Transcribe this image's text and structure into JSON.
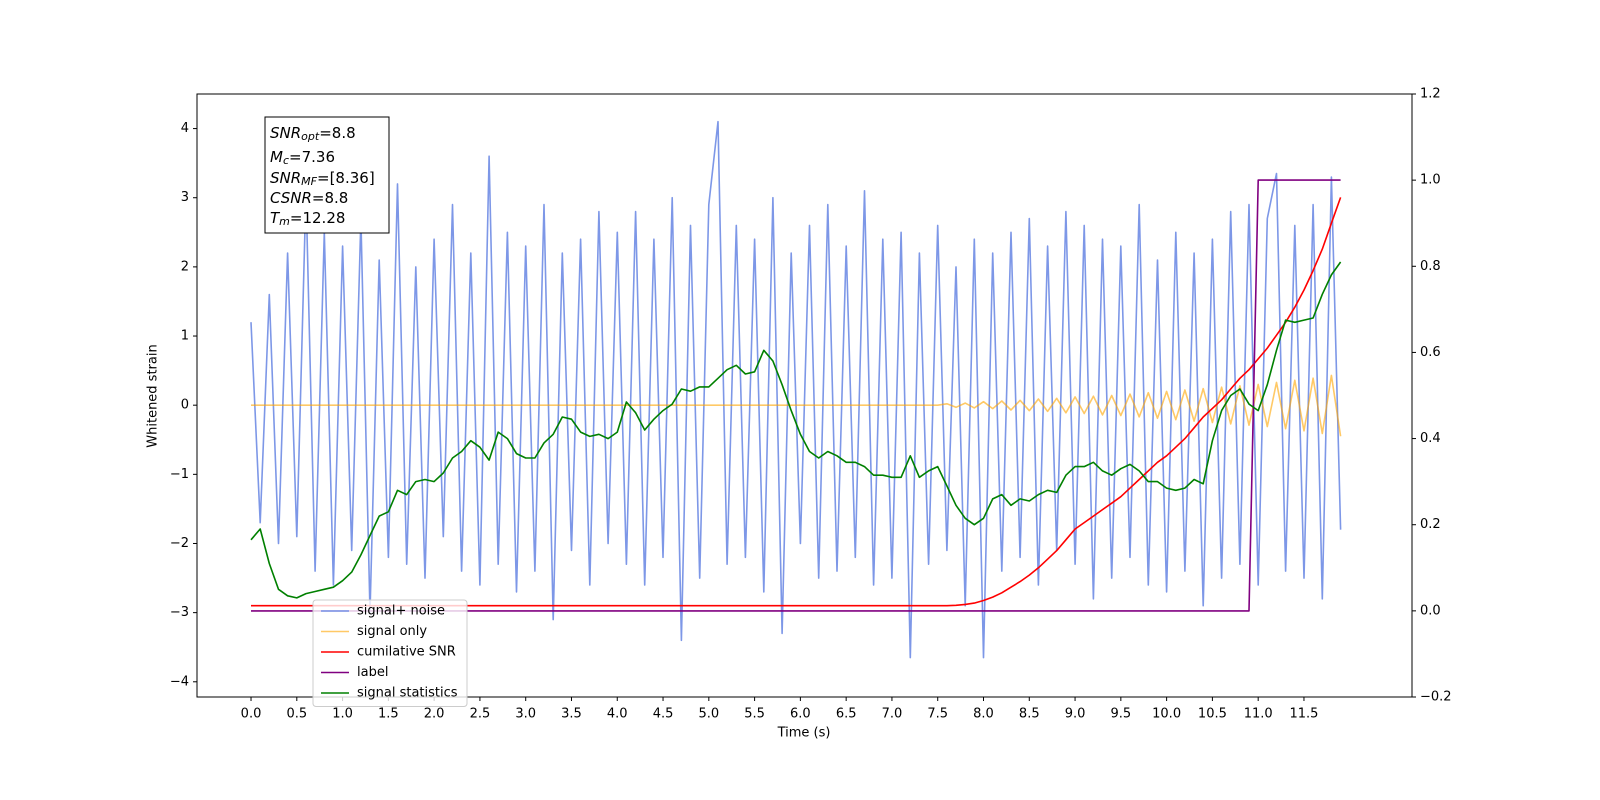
{
  "chart_data": {
    "type": "line",
    "xlabel": "Time (s)",
    "ylabel": "Whitened strain",
    "xlim": [
      -0.59,
      12.68
    ],
    "ylim": [
      -4.22,
      4.5
    ],
    "y2lim": [
      -0.2,
      1.2
    ],
    "xticks": [
      {
        "value": 0,
        "label": "0.0"
      },
      0.5,
      {
        "value": 1,
        "label": "1.0"
      },
      1.5,
      {
        "value": 2,
        "label": "2.0"
      },
      2.5,
      {
        "value": 3,
        "label": "3.0"
      },
      3.5,
      {
        "value": 4,
        "label": "4.0"
      },
      4.5,
      {
        "value": 5,
        "label": "5.0"
      },
      5.5,
      {
        "value": 6,
        "label": "6.0"
      },
      6.5,
      {
        "value": 7,
        "label": "7.0"
      },
      7.5,
      {
        "value": 8,
        "label": "8.0"
      },
      8.5,
      {
        "value": 9,
        "label": "9.0"
      },
      9.5,
      {
        "value": 10,
        "label": "10.0"
      },
      10.5,
      {
        "value": 11,
        "label": "11.0"
      },
      11.5
    ],
    "yticks": [
      {
        "value": -4,
        "label": "−4"
      },
      {
        "value": -3,
        "label": "−3"
      },
      {
        "value": -2,
        "label": "−2"
      },
      {
        "value": -1,
        "label": "−1"
      },
      0,
      1,
      2,
      3,
      4
    ],
    "y2ticks": [
      {
        "value": -0.2,
        "label": "−0.2"
      },
      {
        "value": 0,
        "label": "0.0"
      },
      0.2,
      0.4,
      0.6,
      0.8,
      {
        "value": 1,
        "label": "1.0"
      },
      1.2
    ],
    "legend": "lower left",
    "annotations": [
      {
        "base": "SNR",
        "sub": "opt",
        "text": "=8.8"
      },
      {
        "base": "M",
        "sub": "c",
        "text": "=7.36"
      },
      {
        "base": "SNR",
        "sub": "MF",
        "text": "=[8.36]"
      },
      {
        "base": "CSNR",
        "text": "=8.8"
      },
      {
        "base": "T",
        "sub": "m",
        "text": "=12.28"
      }
    ],
    "x": [
      0,
      0.1,
      0.2,
      0.3,
      0.4,
      0.5,
      0.6,
      0.7,
      0.8,
      0.9,
      1,
      1.1,
      1.2,
      1.3,
      1.4,
      1.5,
      1.6,
      1.7,
      1.8,
      1.9,
      2,
      2.1,
      2.2,
      2.3,
      2.4,
      2.5,
      2.6,
      2.7,
      2.8,
      2.9,
      3,
      3.1,
      3.2,
      3.3,
      3.4,
      3.5,
      3.6,
      3.7,
      3.8,
      3.9,
      4,
      4.1,
      4.2,
      4.3,
      4.4,
      4.5,
      4.6,
      4.7,
      4.8,
      4.9,
      5,
      5.1,
      5.2,
      5.3,
      5.4,
      5.5,
      5.6,
      5.7,
      5.8,
      5.9,
      6,
      6.1,
      6.2,
      6.3,
      6.4,
      6.5,
      6.6,
      6.7,
      6.8,
      6.9,
      7,
      7.1,
      7.2,
      7.3,
      7.4,
      7.5,
      7.6,
      7.7,
      7.8,
      7.9,
      8,
      8.1,
      8.2,
      8.3,
      8.4,
      8.5,
      8.6,
      8.7,
      8.8,
      8.9,
      9,
      9.1,
      9.2,
      9.3,
      9.4,
      9.5,
      9.6,
      9.7,
      9.8,
      9.9,
      10,
      10.1,
      10.2,
      10.3,
      10.4,
      10.5,
      10.6,
      10.7,
      10.8,
      10.9,
      11,
      11.1,
      11.2,
      11.3,
      11.4,
      11.5,
      11.6,
      11.7,
      11.8,
      11.9
    ],
    "series": [
      {
        "name": "signal+ noise",
        "color": "#7691e6",
        "values": [
          1.2,
          -1.7,
          1.6,
          -2.0,
          2.2,
          -1.9,
          3.1,
          -2.4,
          2.5,
          -2.6,
          2.3,
          -2.1,
          2.7,
          -3.0,
          2.1,
          -2.2,
          3.2,
          -2.3,
          2.0,
          -2.5,
          2.4,
          -1.9,
          2.9,
          -2.4,
          2.2,
          -2.6,
          3.6,
          -2.3,
          2.5,
          -2.7,
          2.3,
          -2.4,
          2.9,
          -3.1,
          2.2,
          -2.1,
          2.4,
          -2.6,
          2.8,
          -2.0,
          2.5,
          -2.3,
          2.8,
          -2.6,
          2.4,
          -2.2,
          3.0,
          -3.4,
          2.6,
          -2.5,
          2.9,
          4.1,
          -2.3,
          2.6,
          -2.2,
          2.4,
          -2.7,
          3.0,
          -3.3,
          2.2,
          -2.0,
          2.6,
          -2.5,
          2.9,
          -2.4,
          2.3,
          -2.2,
          3.1,
          -2.6,
          2.4,
          -2.5,
          2.5,
          -3.65,
          2.2,
          -2.3,
          2.6,
          -2.1,
          2.0,
          -2.9,
          2.4,
          -3.65,
          2.2,
          -2.4,
          2.5,
          -2.2,
          2.7,
          -2.6,
          2.3,
          -2.1,
          2.8,
          -2.3,
          2.6,
          -2.8,
          2.4,
          -2.5,
          2.3,
          -2.2,
          2.9,
          -2.6,
          2.1,
          -2.7,
          2.5,
          -2.4,
          2.2,
          -2.9,
          2.4,
          -2.5,
          2.8,
          -2.3,
          2.9,
          -2.6,
          2.7,
          3.35,
          -2.4,
          2.6,
          -2.5,
          2.9,
          -2.8,
          3.3,
          -1.8
        ]
      },
      {
        "name": "signal only",
        "color": "#ffa500",
        "values": [
          0,
          0,
          0,
          0,
          0,
          0,
          0,
          0,
          0,
          0,
          0,
          0,
          0,
          0,
          0,
          0,
          0,
          0,
          0,
          0,
          0,
          0,
          0,
          0,
          0,
          0,
          0,
          0,
          0,
          0,
          0,
          0,
          0,
          0,
          0,
          0,
          0,
          0,
          0,
          0,
          0,
          0,
          0,
          0,
          0,
          0,
          0,
          0,
          0,
          0,
          0,
          0,
          0,
          0,
          0,
          0,
          0,
          0,
          0,
          0,
          0,
          0,
          0,
          0,
          0,
          0,
          0,
          0,
          0,
          0,
          0,
          0,
          0,
          0,
          0,
          0,
          0.02,
          -0.03,
          0.03,
          -0.04,
          0.05,
          -0.05,
          0.06,
          -0.07,
          0.07,
          -0.08,
          0.09,
          -0.09,
          0.1,
          -0.11,
          0.12,
          -0.12,
          0.13,
          -0.14,
          0.14,
          -0.15,
          0.16,
          -0.17,
          0.18,
          -0.19,
          0.2,
          -0.21,
          0.22,
          -0.23,
          0.24,
          -0.25,
          0.26,
          -0.27,
          0.28,
          -0.29,
          0.3,
          -0.31,
          0.33,
          -0.34,
          0.36,
          -0.37,
          0.39,
          -0.41,
          0.43,
          -0.45
        ]
      },
      {
        "name": "cumilative SNR",
        "color": "red",
        "axis": "y2",
        "values": [
          0.012,
          0.012,
          0.012,
          0.012,
          0.012,
          0.012,
          0.012,
          0.012,
          0.012,
          0.012,
          0.012,
          0.012,
          0.012,
          0.012,
          0.012,
          0.012,
          0.012,
          0.012,
          0.012,
          0.012,
          0.012,
          0.012,
          0.012,
          0.012,
          0.012,
          0.012,
          0.012,
          0.012,
          0.012,
          0.012,
          0.012,
          0.012,
          0.012,
          0.012,
          0.012,
          0.012,
          0.012,
          0.012,
          0.012,
          0.012,
          0.012,
          0.012,
          0.012,
          0.012,
          0.012,
          0.012,
          0.012,
          0.012,
          0.012,
          0.012,
          0.012,
          0.012,
          0.012,
          0.012,
          0.012,
          0.012,
          0.012,
          0.012,
          0.012,
          0.012,
          0.012,
          0.012,
          0.012,
          0.012,
          0.012,
          0.012,
          0.012,
          0.012,
          0.012,
          0.012,
          0.012,
          0.012,
          0.012,
          0.012,
          0.012,
          0.012,
          0.012,
          0.013,
          0.015,
          0.018,
          0.024,
          0.032,
          0.042,
          0.055,
          0.068,
          0.083,
          0.1,
          0.12,
          0.14,
          0.165,
          0.19,
          0.205,
          0.22,
          0.235,
          0.25,
          0.265,
          0.285,
          0.305,
          0.325,
          0.345,
          0.36,
          0.38,
          0.4,
          0.425,
          0.45,
          0.47,
          0.49,
          0.515,
          0.54,
          0.56,
          0.585,
          0.61,
          0.64,
          0.67,
          0.705,
          0.745,
          0.79,
          0.84,
          0.9,
          0.96
        ]
      },
      {
        "name": "label",
        "color": "purple",
        "axis": "y2",
        "values": [
          0,
          0,
          0,
          0,
          0,
          0,
          0,
          0,
          0,
          0,
          0,
          0,
          0,
          0,
          0,
          0,
          0,
          0,
          0,
          0,
          0,
          0,
          0,
          0,
          0,
          0,
          0,
          0,
          0,
          0,
          0,
          0,
          0,
          0,
          0,
          0,
          0,
          0,
          0,
          0,
          0,
          0,
          0,
          0,
          0,
          0,
          0,
          0,
          0,
          0,
          0,
          0,
          0,
          0,
          0,
          0,
          0,
          0,
          0,
          0,
          0,
          0,
          0,
          0,
          0,
          0,
          0,
          0,
          0,
          0,
          0,
          0,
          0,
          0,
          0,
          0,
          0,
          0,
          0,
          0,
          0,
          0,
          0,
          0,
          0,
          0,
          0,
          0,
          0,
          0,
          0,
          0,
          0,
          0,
          0,
          0,
          0,
          0,
          0,
          0,
          0,
          0,
          0,
          0,
          0,
          0,
          0,
          0,
          0,
          0,
          1,
          1,
          1,
          1,
          1,
          1,
          1,
          1,
          1,
          1
        ]
      },
      {
        "name": "signal statistics",
        "color": "green",
        "axis": "y2",
        "values": [
          0.165,
          0.19,
          0.11,
          0.05,
          0.035,
          0.03,
          0.04,
          0.045,
          0.05,
          0.055,
          0.07,
          0.09,
          0.13,
          0.175,
          0.22,
          0.23,
          0.28,
          0.27,
          0.3,
          0.305,
          0.3,
          0.32,
          0.355,
          0.37,
          0.395,
          0.38,
          0.35,
          0.415,
          0.4,
          0.365,
          0.355,
          0.355,
          0.39,
          0.41,
          0.45,
          0.445,
          0.415,
          0.405,
          0.41,
          0.4,
          0.415,
          0.485,
          0.46,
          0.42,
          0.445,
          0.465,
          0.48,
          0.515,
          0.51,
          0.52,
          0.52,
          0.54,
          0.56,
          0.57,
          0.55,
          0.555,
          0.605,
          0.58,
          0.525,
          0.465,
          0.41,
          0.37,
          0.355,
          0.37,
          0.36,
          0.345,
          0.345,
          0.335,
          0.315,
          0.315,
          0.31,
          0.31,
          0.36,
          0.31,
          0.325,
          0.335,
          0.29,
          0.245,
          0.215,
          0.2,
          0.215,
          0.26,
          0.27,
          0.245,
          0.26,
          0.255,
          0.27,
          0.28,
          0.275,
          0.315,
          0.335,
          0.335,
          0.345,
          0.325,
          0.315,
          0.33,
          0.34,
          0.325,
          0.3,
          0.3,
          0.285,
          0.28,
          0.285,
          0.305,
          0.295,
          0.395,
          0.465,
          0.5,
          0.515,
          0.48,
          0.465,
          0.525,
          0.605,
          0.675,
          0.67,
          0.675,
          0.68,
          0.735,
          0.78,
          0.81
        ]
      }
    ]
  }
}
